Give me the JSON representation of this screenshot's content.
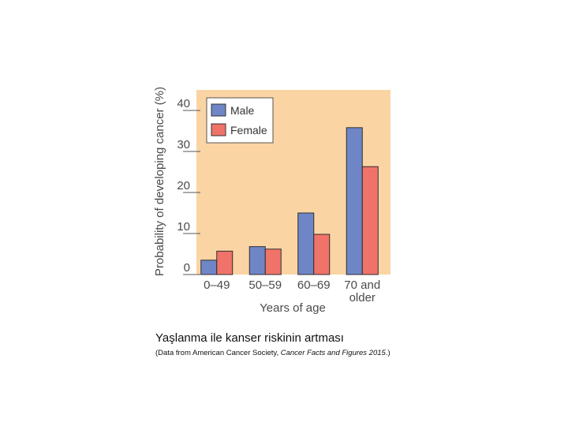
{
  "chart_data": {
    "type": "bar",
    "categories": [
      [
        "0–49"
      ],
      [
        "50–59"
      ],
      [
        "60–69"
      ],
      [
        "70 and",
        "older"
      ]
    ],
    "series": [
      {
        "name": "Male",
        "values": [
          3.5,
          6.8,
          15.0,
          35.8
        ],
        "color": "#6f86c6"
      },
      {
        "name": "Female",
        "values": [
          5.7,
          6.2,
          9.8,
          26.3
        ],
        "color": "#f07369"
      }
    ],
    "xlabel": "Years of age",
    "ylabel": "Probability of developing cancer (%)",
    "ylim": [
      0,
      45
    ],
    "yticks": [
      0,
      10,
      20,
      30,
      40
    ],
    "legend_position": "top-left",
    "background_color": "#fbd4a4",
    "grid": false
  },
  "caption": "Yaşlanma ile kanser riskinin artması",
  "source": {
    "prefix": "(Data from American Cancer Society, ",
    "title": "Cancer Facts and Figures 2015",
    "suffix": ".)"
  }
}
